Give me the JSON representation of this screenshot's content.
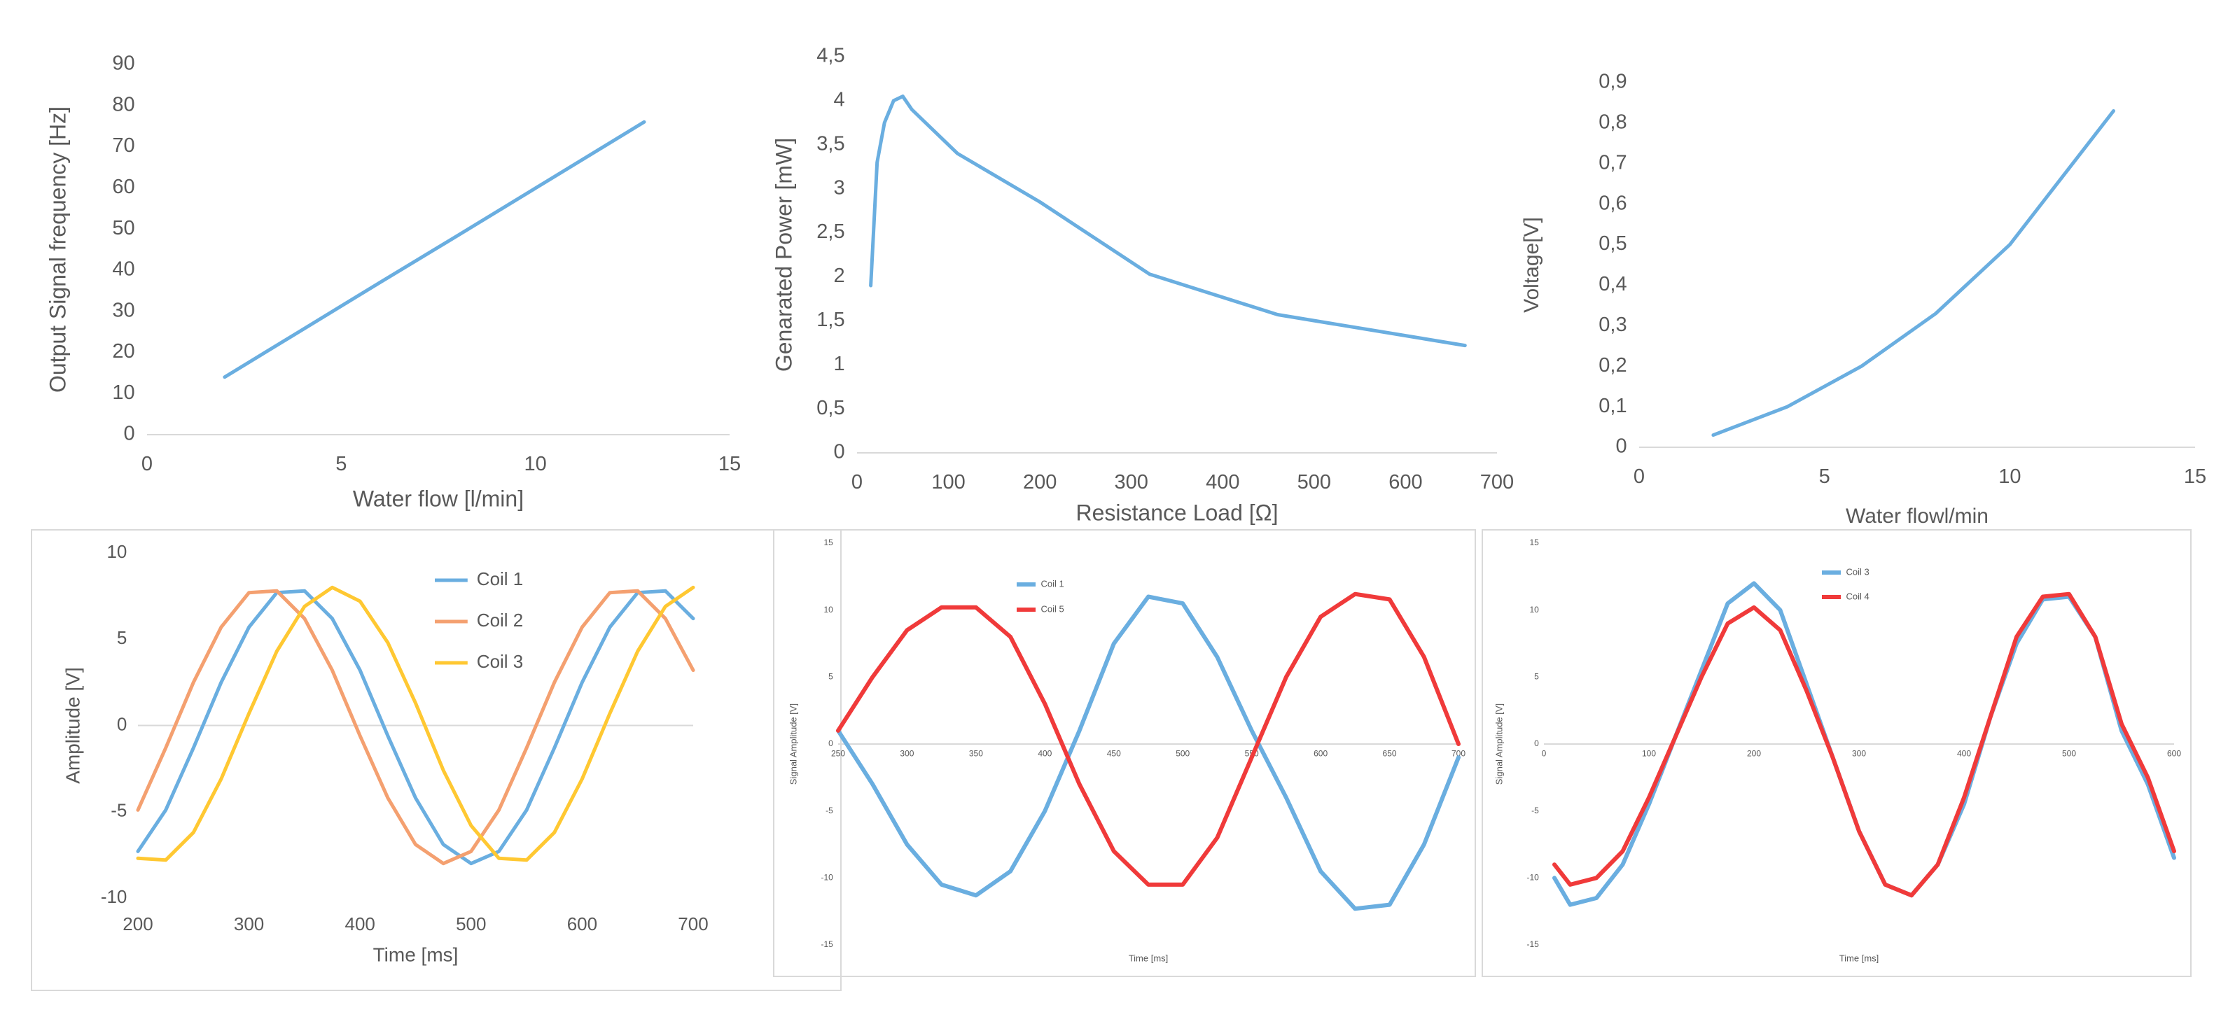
{
  "chart_data": [
    {
      "type": "line",
      "xlabel": "Water flow [l/min]",
      "ylabel": "Output Signal frequency [Hz]",
      "x": [
        2,
        4,
        6,
        8,
        10,
        12.8
      ],
      "values": [
        14,
        25.5,
        37,
        48.4,
        59.9,
        76
      ],
      "color": "#6aaee0",
      "xlim": [
        0,
        15
      ],
      "xticks": [
        0,
        5,
        10,
        15
      ],
      "ylim": [
        0,
        90
      ],
      "yticks": [
        0,
        10,
        20,
        30,
        40,
        50,
        60,
        70,
        80,
        90
      ],
      "grid": false
    },
    {
      "type": "line",
      "xlabel": "Resistance Load [Ω]",
      "ylabel": "Genarated Power [mW]",
      "x": [
        15,
        22,
        30,
        40,
        50,
        60,
        110,
        200,
        320,
        460,
        665
      ],
      "values": [
        1.9,
        3.3,
        3.75,
        4.0,
        4.05,
        3.9,
        3.4,
        2.85,
        2.03,
        1.57,
        1.22
      ],
      "color": "#6aaee0",
      "xlim": [
        0,
        700
      ],
      "xticks": [
        0,
        100,
        200,
        300,
        400,
        500,
        600,
        700
      ],
      "ylim": [
        0,
        4.5
      ],
      "yticks": [
        0,
        {
          "value": 0.5,
          "label": "0,5"
        },
        1,
        {
          "value": 1.5,
          "label": "1,5"
        },
        2,
        {
          "value": 2.5,
          "label": "2,5"
        },
        3,
        {
          "value": 3.5,
          "label": "3,5"
        },
        4,
        {
          "value": 4.5,
          "label": "4,5"
        }
      ],
      "grid": false
    },
    {
      "type": "line",
      "xlabel": "Water flowl/min",
      "ylabel": "Voltage[V]",
      "x": [
        2,
        4,
        6,
        8,
        10,
        12.8
      ],
      "values": [
        0.03,
        0.1,
        0.2,
        0.33,
        0.5,
        0.83
      ],
      "color": "#6aaee0",
      "xlim": [
        0,
        15
      ],
      "xticks": [
        0,
        5,
        10,
        15
      ],
      "ylim": [
        0,
        0.9
      ],
      "yticks": [
        0,
        {
          "value": 0.1,
          "label": "0,1"
        },
        {
          "value": 0.2,
          "label": "0,2"
        },
        {
          "value": 0.3,
          "label": "0,3"
        },
        {
          "value": 0.4,
          "label": "0,4"
        },
        {
          "value": 0.5,
          "label": "0,5"
        },
        {
          "value": 0.6,
          "label": "0,6"
        },
        {
          "value": 0.7,
          "label": "0,7"
        },
        {
          "value": 0.8,
          "label": "0,8"
        },
        {
          "value": 0.9,
          "label": "0,9"
        }
      ],
      "grid": false
    },
    {
      "type": "line",
      "xlabel": "Time [ms]",
      "ylabel": "Amplitude [V]",
      "legend": "top-right",
      "x": [
        200,
        225,
        250,
        275,
        300,
        325,
        350,
        375,
        400,
        425,
        450,
        475,
        500,
        525,
        550,
        575,
        600,
        625,
        650,
        675,
        700
      ],
      "series": [
        {
          "name": "Coil 1",
          "color": "#6aaee0",
          "values": [
            -7.3,
            -4.9,
            -1.3,
            2.5,
            5.7,
            7.7,
            7.8,
            6.2,
            3.2,
            -0.6,
            -4.2,
            -6.9,
            -8.0,
            -7.3,
            -4.9,
            -1.3,
            2.5,
            5.7,
            7.7,
            7.8,
            6.2
          ]
        },
        {
          "name": "Coil 2",
          "color": "#f4a070",
          "values": [
            -4.9,
            -1.3,
            2.5,
            5.7,
            7.7,
            7.8,
            6.2,
            3.2,
            -0.6,
            -4.2,
            -6.9,
            -8.0,
            -7.3,
            -4.9,
            -1.3,
            2.5,
            5.7,
            7.7,
            7.8,
            6.2,
            3.2
          ]
        },
        {
          "name": "Coil 3",
          "color": "#ffc832",
          "values": [
            -7.7,
            -7.8,
            -6.2,
            -3.1,
            0.7,
            4.3,
            6.9,
            8.0,
            7.2,
            4.8,
            1.3,
            -2.6,
            -5.8,
            -7.7,
            -7.8,
            -6.2,
            -3.1,
            0.7,
            4.3,
            6.9,
            8.0
          ]
        }
      ],
      "xlim": [
        200,
        700
      ],
      "xticks": [
        200,
        300,
        400,
        500,
        600,
        700
      ],
      "ylim": [
        -10,
        10
      ],
      "yticks": [
        -10,
        -5,
        0,
        5,
        10
      ],
      "grid": false
    },
    {
      "type": "line",
      "xlabel": "Time [ms]",
      "ylabel": "Signal Amplitude [V]",
      "legend": "top",
      "x": [
        250,
        275,
        300,
        325,
        350,
        375,
        400,
        425,
        450,
        475,
        500,
        525,
        550,
        575,
        600,
        625,
        650,
        675,
        700
      ],
      "series": [
        {
          "name": "Coil 1",
          "color": "#6aaee0",
          "values": [
            1,
            -3,
            -7.5,
            -10.5,
            -11.3,
            -9.5,
            -5,
            1,
            7.5,
            11,
            10.5,
            6.5,
            1,
            -4,
            -9.5,
            -12.3,
            -12,
            -7.5,
            -1
          ]
        },
        {
          "name": "Coil 5",
          "color": "#f03a3a",
          "values": [
            1,
            5,
            8.5,
            10.2,
            10.2,
            8,
            3,
            -3,
            -8,
            -10.5,
            -10.5,
            -7,
            -1,
            5,
            9.5,
            11.2,
            10.8,
            6.5,
            0
          ]
        }
      ],
      "xlim": [
        250,
        700
      ],
      "xticks": [
        250,
        300,
        350,
        400,
        450,
        500,
        550,
        600,
        650,
        700
      ],
      "ylim": [
        -15,
        15
      ],
      "yticks": [
        -15,
        -10,
        -5,
        0,
        5,
        10,
        15
      ],
      "grid": false
    },
    {
      "type": "line",
      "xlabel": "Time [ms]",
      "ylabel": "Signal Amplitude [V]",
      "legend": "top",
      "x": [
        10,
        25,
        50,
        75,
        100,
        125,
        150,
        175,
        200,
        225,
        250,
        275,
        300,
        325,
        350,
        375,
        400,
        425,
        450,
        475,
        500,
        525,
        550,
        575,
        600
      ],
      "series": [
        {
          "name": "Coil 3",
          "color": "#6aaee0",
          "values": [
            -10,
            -12,
            -11.5,
            -9,
            -4.5,
            0.5,
            5.5,
            10.5,
            12,
            10,
            4.5,
            -1,
            -6.5,
            -10.5,
            -11.3,
            -9,
            -4.5,
            2,
            7.5,
            10.8,
            11,
            8,
            1,
            -3,
            -8.5
          ]
        },
        {
          "name": "Coil 4",
          "color": "#f03a3a",
          "values": [
            -9,
            -10.5,
            -10,
            -8,
            -4,
            0.5,
            5,
            9,
            10.2,
            8.5,
            4,
            -1,
            -6.5,
            -10.5,
            -11.3,
            -9,
            -4,
            2,
            8,
            11,
            11.2,
            8,
            1.5,
            -2.5,
            -8
          ]
        }
      ],
      "xlim": [
        0,
        600
      ],
      "xticks": [
        0,
        100,
        200,
        300,
        400,
        500,
        600
      ],
      "ylim": [
        -15,
        15
      ],
      "yticks": [
        -15,
        -10,
        -5,
        0,
        5,
        10,
        15
      ],
      "grid": false
    }
  ]
}
